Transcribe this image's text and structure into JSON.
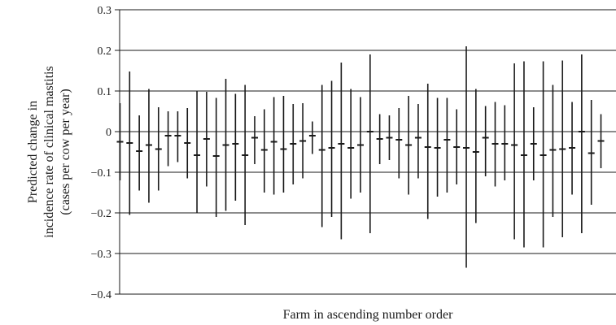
{
  "chart_data": {
    "type": "errorbar",
    "xlabel": "Farm in ascending number order",
    "ylabel_lines": [
      "Predicted change in",
      "incidence rate of clinical mastitis",
      "(cases per cow per year)"
    ],
    "ylim": [
      -0.4,
      0.3
    ],
    "yticks": [
      0.3,
      0.2,
      0.1,
      0,
      -0.1,
      -0.2,
      -0.3,
      -0.4
    ],
    "ytick_labels": [
      "0.3",
      "0.2",
      "0.1",
      "0",
      "−0.1",
      "−0.2",
      "−0.3",
      "−0.4"
    ],
    "grid": "horizontal",
    "series": [
      {
        "mean": [
          -0.025,
          -0.028,
          -0.048,
          -0.033,
          -0.043,
          -0.01,
          -0.01,
          -0.028,
          -0.058,
          -0.018,
          -0.06,
          -0.033,
          -0.03,
          -0.058,
          -0.015,
          -0.045,
          -0.025,
          -0.043,
          -0.03,
          -0.023,
          -0.01,
          -0.045,
          -0.04,
          -0.03,
          -0.04,
          -0.033,
          0.0,
          -0.018,
          -0.015,
          -0.02,
          -0.033,
          -0.015,
          -0.038,
          -0.04,
          -0.02,
          -0.038,
          -0.04,
          -0.05,
          -0.015,
          -0.03,
          -0.03,
          -0.033,
          -0.058,
          -0.03,
          -0.058,
          -0.045,
          -0.043,
          -0.04,
          0.0,
          -0.053,
          -0.023
        ],
        "lower": [
          -0.12,
          -0.205,
          -0.145,
          -0.175,
          -0.145,
          -0.085,
          -0.075,
          -0.115,
          -0.2,
          -0.135,
          -0.21,
          -0.195,
          -0.17,
          -0.23,
          -0.08,
          -0.15,
          -0.155,
          -0.15,
          -0.13,
          -0.115,
          -0.055,
          -0.235,
          -0.21,
          -0.265,
          -0.165,
          -0.15,
          -0.25,
          -0.08,
          -0.07,
          -0.115,
          -0.155,
          -0.115,
          -0.215,
          -0.16,
          -0.15,
          -0.13,
          -0.335,
          -0.225,
          -0.11,
          -0.135,
          -0.12,
          -0.265,
          -0.285,
          -0.12,
          -0.285,
          -0.21,
          -0.26,
          -0.155,
          -0.25,
          -0.18,
          -0.09
        ],
        "upper": [
          0.07,
          0.148,
          0.04,
          0.105,
          0.06,
          0.05,
          0.05,
          0.058,
          0.1,
          0.098,
          0.083,
          0.13,
          0.093,
          0.115,
          0.038,
          0.055,
          0.085,
          0.088,
          0.068,
          0.07,
          0.025,
          0.115,
          0.125,
          0.17,
          0.105,
          0.085,
          0.19,
          0.043,
          0.04,
          0.058,
          0.088,
          0.068,
          0.118,
          0.083,
          0.083,
          0.055,
          0.21,
          0.105,
          0.063,
          0.073,
          0.065,
          0.168,
          0.173,
          0.06,
          0.173,
          0.115,
          0.175,
          0.073,
          0.19,
          0.078,
          0.043
        ]
      }
    ]
  }
}
